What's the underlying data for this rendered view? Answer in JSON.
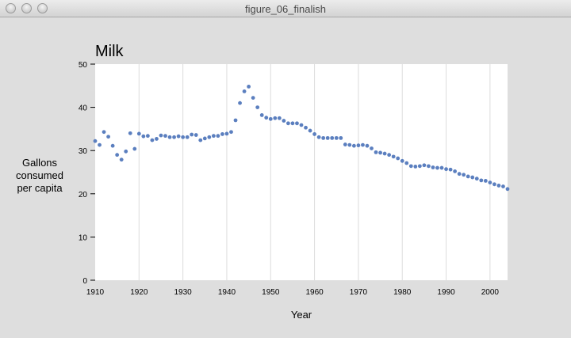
{
  "window": {
    "title": "figure_06_finalish"
  },
  "chart_data": {
    "type": "scatter",
    "title": "Milk",
    "xlabel": "Year",
    "ylabel_lines": [
      "Gallons",
      "consumed",
      "per capita"
    ],
    "xlim": [
      1910,
      2004
    ],
    "ylim": [
      0,
      50
    ],
    "x_ticks": [
      1910,
      1920,
      1930,
      1940,
      1950,
      1960,
      1970,
      1980,
      1990,
      2000
    ],
    "y_ticks": [
      0,
      10,
      20,
      30,
      40,
      50
    ],
    "grid": "vertical",
    "point_color": "#5b7fbf",
    "x": [
      1910,
      1911,
      1912,
      1913,
      1914,
      1915,
      1916,
      1917,
      1918,
      1919,
      1920,
      1921,
      1922,
      1923,
      1924,
      1925,
      1926,
      1927,
      1928,
      1929,
      1930,
      1931,
      1932,
      1933,
      1934,
      1935,
      1936,
      1937,
      1938,
      1939,
      1940,
      1941,
      1942,
      1943,
      1944,
      1945,
      1946,
      1947,
      1948,
      1949,
      1950,
      1951,
      1952,
      1953,
      1954,
      1955,
      1956,
      1957,
      1958,
      1959,
      1960,
      1961,
      1962,
      1963,
      1964,
      1965,
      1966,
      1967,
      1968,
      1969,
      1970,
      1971,
      1972,
      1973,
      1974,
      1975,
      1976,
      1977,
      1978,
      1979,
      1980,
      1981,
      1982,
      1983,
      1984,
      1985,
      1986,
      1987,
      1988,
      1989,
      1990,
      1991,
      1992,
      1993,
      1994,
      1995,
      1996,
      1997,
      1998,
      1999,
      2000,
      2001,
      2002,
      2003,
      2004
    ],
    "y": [
      32.2,
      31.3,
      34.3,
      33.2,
      31.1,
      29.0,
      27.9,
      29.8,
      34.0,
      30.4,
      33.9,
      33.3,
      33.4,
      32.4,
      32.7,
      33.5,
      33.4,
      33.1,
      33.1,
      33.3,
      33.1,
      33.1,
      33.7,
      33.6,
      32.4,
      32.8,
      33.1,
      33.4,
      33.4,
      33.8,
      33.9,
      34.3,
      37.0,
      41.0,
      43.7,
      44.8,
      42.2,
      40.0,
      38.2,
      37.6,
      37.3,
      37.5,
      37.5,
      36.9,
      36.3,
      36.3,
      36.3,
      35.9,
      35.3,
      34.6,
      33.8,
      33.1,
      32.9,
      32.9,
      32.9,
      32.9,
      32.9,
      31.4,
      31.3,
      31.1,
      31.2,
      31.3,
      31.1,
      30.5,
      29.6,
      29.5,
      29.3,
      29.0,
      28.6,
      28.2,
      27.6,
      27.1,
      26.4,
      26.3,
      26.4,
      26.6,
      26.4,
      26.1,
      26.0,
      26.0,
      25.7,
      25.6,
      25.2,
      24.6,
      24.4,
      24.0,
      23.8,
      23.5,
      23.1,
      23.0,
      22.6,
      22.2,
      21.9,
      21.7,
      21.1
    ]
  }
}
